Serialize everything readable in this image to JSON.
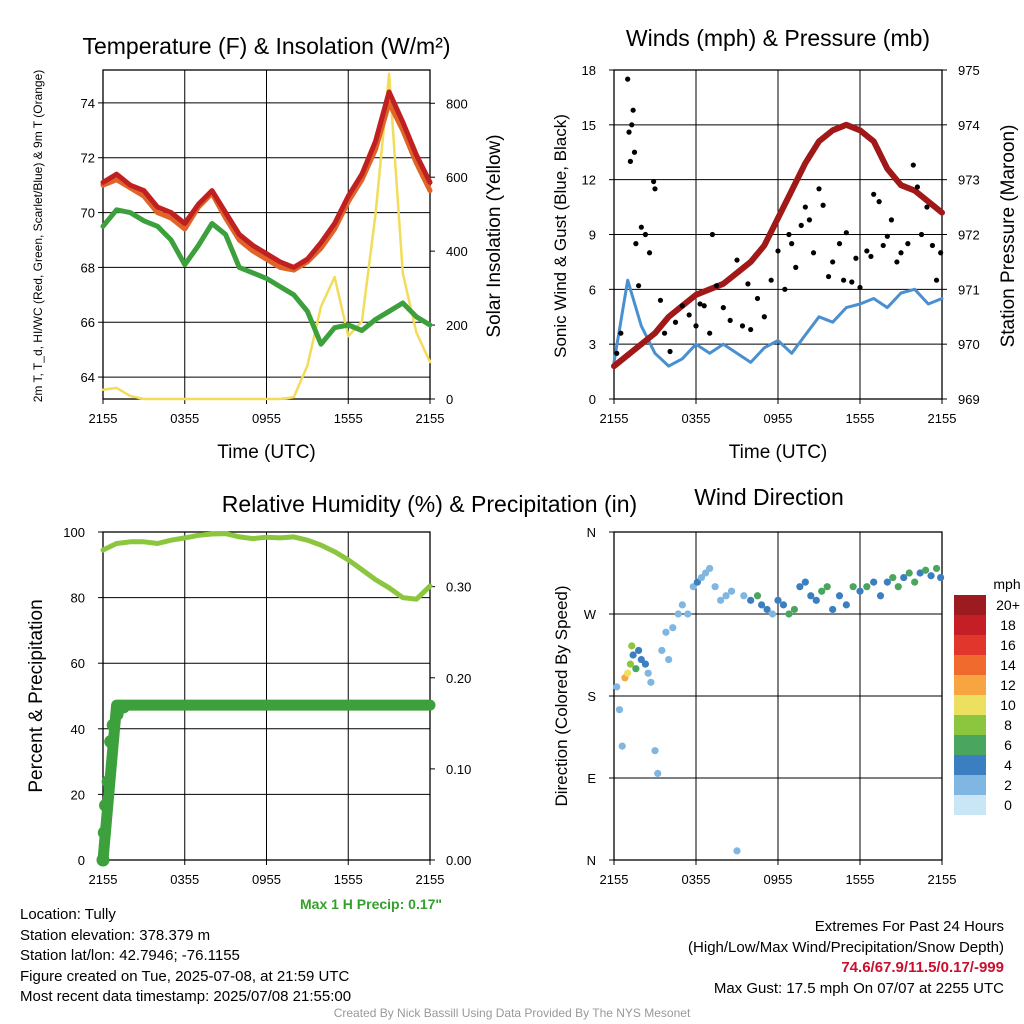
{
  "chart_data": [
    {
      "type": "line",
      "title": "Temperature (F) & Insolation (W/m²)",
      "xlabel": "Time (UTC)",
      "ylabel": "2m T, T_d, HI/WC (Red, Green, Scarlet/Blue) & 9m T (Orange)",
      "ylabel_right": "Solar Insolation (Yellow)",
      "x_ticks": [
        "2155",
        "0355",
        "0955",
        "1555",
        "2155"
      ],
      "ylim": [
        63.2,
        75.2
      ],
      "y_ticks": [
        64,
        66,
        68,
        70,
        72,
        74
      ],
      "y2lim": [
        0,
        890
      ],
      "y2_ticks": [
        0,
        200,
        400,
        600,
        800
      ],
      "x_hours": [
        0,
        1,
        2,
        3,
        4,
        5,
        6,
        7,
        8,
        9,
        10,
        11,
        12,
        13,
        14,
        15,
        16,
        17,
        18,
        19,
        20,
        21,
        22,
        23,
        24
      ],
      "series": [
        {
          "color": "#e06428",
          "values": [
            71.0,
            71.2,
            70.9,
            70.6,
            70.0,
            69.8,
            69.4,
            70.2,
            70.7,
            69.8,
            69.0,
            68.6,
            68.3,
            68.0,
            67.9,
            68.2,
            68.7,
            69.4,
            70.4,
            71.2,
            72.3,
            74.0,
            73.0,
            71.8,
            70.8
          ]
        },
        {
          "color": "#c02020",
          "values": [
            71.1,
            71.4,
            71.0,
            70.8,
            70.2,
            70.0,
            69.6,
            70.3,
            70.8,
            70.0,
            69.2,
            68.8,
            68.5,
            68.2,
            68.0,
            68.3,
            68.9,
            69.6,
            70.6,
            71.4,
            72.6,
            74.4,
            73.3,
            72.1,
            71.1
          ]
        },
        {
          "color": "#3ca03c",
          "values": [
            69.5,
            70.1,
            70.0,
            69.7,
            69.5,
            69.0,
            68.1,
            68.8,
            69.6,
            69.2,
            68.0,
            67.8,
            67.6,
            67.3,
            67.0,
            66.4,
            65.2,
            65.8,
            65.9,
            65.7,
            66.1,
            66.4,
            66.7,
            66.2,
            65.9
          ]
        },
        {
          "color": "#f2dc5a",
          "values": [
            25,
            30,
            8,
            0,
            0,
            0,
            0,
            0,
            0,
            0,
            0,
            0,
            0,
            0,
            5,
            90,
            250,
            330,
            170,
            210,
            500,
            880,
            340,
            180,
            100
          ]
        }
      ]
    },
    {
      "type": "scatter",
      "title": "Winds (mph) & Pressure (mb)",
      "xlabel": "Time (UTC)",
      "ylabel": "Sonic Wind & Gust (Blue, Black)",
      "ylabel_right": "Station Pressure (Maroon)",
      "x_ticks": [
        "2155",
        "0355",
        "0955",
        "1555",
        "2155"
      ],
      "ylim": [
        0,
        18
      ],
      "y_ticks": [
        0,
        3,
        6,
        9,
        12,
        15,
        18
      ],
      "y2lim": [
        969,
        975
      ],
      "y2_ticks": [
        969,
        970,
        971,
        972,
        973,
        974,
        975
      ],
      "x_hours": [
        0,
        1,
        2,
        3,
        4,
        5,
        6,
        7,
        8,
        9,
        10,
        11,
        12,
        13,
        14,
        15,
        16,
        17,
        18,
        19,
        20,
        21,
        22,
        23,
        24
      ],
      "series": [
        {
          "color": "#4a90d0",
          "values": [
            2.0,
            6.5,
            4.0,
            2.5,
            1.8,
            2.2,
            3.0,
            2.5,
            3.0,
            2.5,
            2.0,
            2.8,
            3.2,
            2.5,
            3.5,
            4.5,
            4.2,
            5.0,
            5.2,
            5.5,
            5.0,
            5.8,
            6.0,
            5.2,
            5.5
          ]
        },
        {
          "color": "#a01818",
          "values": [
            969.6,
            969.8,
            970.0,
            970.2,
            970.5,
            970.7,
            970.9,
            971.0,
            971.1,
            971.3,
            971.5,
            971.8,
            972.3,
            972.8,
            973.3,
            973.7,
            973.9,
            974.0,
            973.9,
            973.7,
            973.2,
            972.9,
            972.8,
            972.6,
            972.4
          ]
        }
      ],
      "gust_points": [
        [
          0.2,
          2.5
        ],
        [
          0.5,
          3.6
        ],
        [
          1.0,
          17.5
        ],
        [
          1.1,
          14.6
        ],
        [
          1.3,
          15.0
        ],
        [
          1.4,
          15.8
        ],
        [
          1.2,
          13.0
        ],
        [
          1.5,
          13.5
        ],
        [
          1.6,
          8.5
        ],
        [
          1.8,
          6.2
        ],
        [
          2.0,
          9.4
        ],
        [
          2.3,
          9.0
        ],
        [
          2.6,
          8.0
        ],
        [
          2.9,
          11.9
        ],
        [
          3.0,
          11.5
        ],
        [
          3.4,
          5.4
        ],
        [
          3.7,
          3.6
        ],
        [
          4.1,
          2.6
        ],
        [
          4.5,
          4.2
        ],
        [
          5.0,
          5.1
        ],
        [
          5.5,
          4.6
        ],
        [
          6.0,
          4.0
        ],
        [
          6.3,
          5.2
        ],
        [
          6.6,
          5.1
        ],
        [
          7.0,
          3.6
        ],
        [
          7.2,
          9.0
        ],
        [
          7.5,
          6.2
        ],
        [
          8.0,
          5.0
        ],
        [
          8.5,
          4.3
        ],
        [
          9.0,
          7.6
        ],
        [
          9.4,
          4.0
        ],
        [
          9.8,
          6.3
        ],
        [
          10.0,
          3.8
        ],
        [
          10.5,
          5.5
        ],
        [
          11.0,
          4.5
        ],
        [
          11.5,
          6.5
        ],
        [
          12.0,
          8.1
        ],
        [
          12.5,
          6.0
        ],
        [
          12.8,
          9.0
        ],
        [
          13.0,
          8.5
        ],
        [
          13.3,
          7.2
        ],
        [
          13.7,
          9.5
        ],
        [
          14.0,
          10.5
        ],
        [
          14.3,
          9.8
        ],
        [
          14.6,
          8.0
        ],
        [
          15.0,
          11.5
        ],
        [
          15.3,
          10.6
        ],
        [
          15.7,
          6.7
        ],
        [
          16.0,
          7.5
        ],
        [
          16.5,
          8.5
        ],
        [
          16.8,
          6.5
        ],
        [
          17.0,
          9.1
        ],
        [
          17.4,
          6.4
        ],
        [
          17.7,
          7.7
        ],
        [
          18.0,
          6.1
        ],
        [
          18.5,
          8.1
        ],
        [
          18.8,
          7.8
        ],
        [
          19.0,
          11.2
        ],
        [
          19.4,
          10.8
        ],
        [
          19.7,
          8.4
        ],
        [
          20.0,
          8.9
        ],
        [
          20.3,
          9.8
        ],
        [
          20.7,
          7.5
        ],
        [
          21.0,
          8.0
        ],
        [
          21.5,
          8.5
        ],
        [
          21.9,
          12.8
        ],
        [
          22.2,
          11.6
        ],
        [
          22.5,
          9.0
        ],
        [
          22.9,
          10.5
        ],
        [
          23.3,
          8.4
        ],
        [
          23.6,
          6.5
        ],
        [
          23.9,
          8.0
        ]
      ]
    },
    {
      "type": "line",
      "title": "Relative Humidity (%) & Precipitation (in)",
      "ylabel": "Percent & Precipitation",
      "x_ticks": [
        "2155",
        "0355",
        "0955",
        "1555",
        "2155"
      ],
      "ylim": [
        0,
        100
      ],
      "y_ticks": [
        0,
        20,
        40,
        60,
        80,
        100
      ],
      "y2lim": [
        0,
        0.36
      ],
      "y2_ticks": [
        "0.00",
        "0.10",
        "0.20",
        "0.30"
      ],
      "x_hours": [
        0,
        1,
        2,
        3,
        4,
        5,
        6,
        7,
        8,
        9,
        10,
        11,
        12,
        13,
        14,
        15,
        16,
        17,
        18,
        19,
        20,
        21,
        22,
        23,
        24
      ],
      "series": [
        {
          "color": "#8cc63f",
          "values": [
            94.5,
            96.5,
            97.0,
            97.0,
            96.5,
            97.5,
            98.2,
            99.0,
            99.4,
            99.5,
            98.5,
            98.0,
            98.4,
            98.2,
            98.5,
            97.5,
            96.0,
            94.0,
            91.5,
            88.5,
            85.5,
            83.0,
            80.0,
            79.5,
            83.5
          ]
        },
        {
          "color": "#3ca03c",
          "values": [
            0.0,
            0.17,
            0.17,
            0.17,
            0.17,
            0.17,
            0.17,
            0.17,
            0.17,
            0.17,
            0.17,
            0.17,
            0.17,
            0.17,
            0.17,
            0.17,
            0.17,
            0.17,
            0.17,
            0.17,
            0.17,
            0.17,
            0.17,
            0.17,
            0.17
          ]
        }
      ],
      "precip_ramp": [
        [
          0.0,
          0.0
        ],
        [
          0.05,
          0.03
        ],
        [
          0.1,
          0.06
        ],
        [
          0.2,
          0.086
        ],
        [
          0.3,
          0.13
        ],
        [
          0.4,
          0.148
        ],
        [
          0.55,
          0.16
        ],
        [
          0.8,
          0.168
        ]
      ],
      "annotation": "Max 1 H Precip: 0.17\""
    },
    {
      "type": "scatter",
      "title": "Wind Direction",
      "ylabel": "Direction (Colored By Speed)",
      "x_ticks": [
        "2155",
        "0355",
        "0955",
        "1555",
        "2155"
      ],
      "y_ticks": [
        "N",
        "E",
        "S",
        "W",
        "N"
      ],
      "ylim": [
        0,
        360
      ],
      "legend_title": "mph",
      "legend_labels": [
        "20+",
        "18",
        "16",
        "14",
        "12",
        "10",
        "8",
        "6",
        "4",
        "2",
        "0"
      ],
      "legend_colors": [
        "#9b1b1e",
        "#c41f26",
        "#e0362c",
        "#f06a2e",
        "#f7a541",
        "#ede061",
        "#8cc63f",
        "#4aa65e",
        "#3c7fc0",
        "#7fb6e2",
        "#c9e6f7"
      ],
      "points": [
        [
          0.2,
          190,
          1
        ],
        [
          0.4,
          165,
          1
        ],
        [
          0.6,
          125,
          1
        ],
        [
          0.8,
          200,
          12
        ],
        [
          1.0,
          205,
          10
        ],
        [
          1.2,
          215,
          8
        ],
        [
          1.4,
          225,
          4
        ],
        [
          1.3,
          235,
          7
        ],
        [
          1.6,
          210,
          5
        ],
        [
          1.8,
          230,
          4
        ],
        [
          2.0,
          220,
          3
        ],
        [
          2.3,
          215,
          4
        ],
        [
          2.5,
          205,
          2
        ],
        [
          2.7,
          195,
          1
        ],
        [
          3.0,
          120,
          2
        ],
        [
          3.2,
          95,
          1
        ],
        [
          3.5,
          230,
          2
        ],
        [
          3.8,
          250,
          2
        ],
        [
          4.0,
          220,
          1
        ],
        [
          4.3,
          255,
          2
        ],
        [
          4.7,
          270,
          2
        ],
        [
          5.0,
          280,
          1
        ],
        [
          5.4,
          270,
          1
        ],
        [
          5.8,
          300,
          2
        ],
        [
          6.1,
          305,
          3
        ],
        [
          6.4,
          310,
          2
        ],
        [
          6.7,
          315,
          1
        ],
        [
          7.0,
          320,
          1
        ],
        [
          7.4,
          300,
          2
        ],
        [
          7.8,
          285,
          2
        ],
        [
          8.2,
          290,
          1
        ],
        [
          8.6,
          295,
          2
        ],
        [
          9.0,
          10,
          1
        ],
        [
          9.5,
          290,
          2
        ],
        [
          10.0,
          285,
          3
        ],
        [
          10.5,
          290,
          5
        ],
        [
          10.8,
          280,
          4
        ],
        [
          11.2,
          275,
          3
        ],
        [
          11.6,
          270,
          2
        ],
        [
          12.0,
          285,
          3
        ],
        [
          12.4,
          280,
          4
        ],
        [
          12.8,
          270,
          6
        ],
        [
          13.2,
          275,
          5
        ],
        [
          13.6,
          300,
          4
        ],
        [
          14.0,
          305,
          3
        ],
        [
          14.4,
          290,
          4
        ],
        [
          14.8,
          285,
          4
        ],
        [
          15.2,
          295,
          5
        ],
        [
          15.6,
          300,
          6
        ],
        [
          16.0,
          275,
          4
        ],
        [
          16.5,
          290,
          3
        ],
        [
          17.0,
          280,
          4
        ],
        [
          17.5,
          300,
          5
        ],
        [
          18.0,
          295,
          4
        ],
        [
          18.5,
          300,
          6
        ],
        [
          19.0,
          305,
          4
        ],
        [
          19.5,
          290,
          4
        ],
        [
          20.0,
          305,
          3
        ],
        [
          20.4,
          310,
          5
        ],
        [
          20.8,
          300,
          6
        ],
        [
          21.2,
          310,
          4
        ],
        [
          21.6,
          315,
          5
        ],
        [
          22.0,
          305,
          6
        ],
        [
          22.4,
          315,
          3
        ],
        [
          22.8,
          318,
          6
        ],
        [
          23.2,
          312,
          4
        ],
        [
          23.6,
          320,
          5
        ],
        [
          23.9,
          310,
          4
        ]
      ]
    }
  ],
  "info": {
    "location": "Location: Tully",
    "elevation": "Station elevation: 378.379 m",
    "latlon": "Station lat/lon: 42.7946; -76.1155",
    "created": "Figure created on Tue, 2025-07-08, at 21:59 UTC",
    "recent": "Most recent data timestamp: 2025/07/08 21:55:00"
  },
  "extremes": {
    "title": "Extremes For Past 24 Hours",
    "subtitle": "(High/Low/Max Wind/Precipitation/Snow Depth)",
    "values": "74.6/67.9/11.5/0.17/-999",
    "gust": "Max Gust: 17.5 mph On 07/07 at 2255 UTC"
  },
  "credit": "Created By Nick Bassill Using Data Provided By The NYS Mesonet"
}
